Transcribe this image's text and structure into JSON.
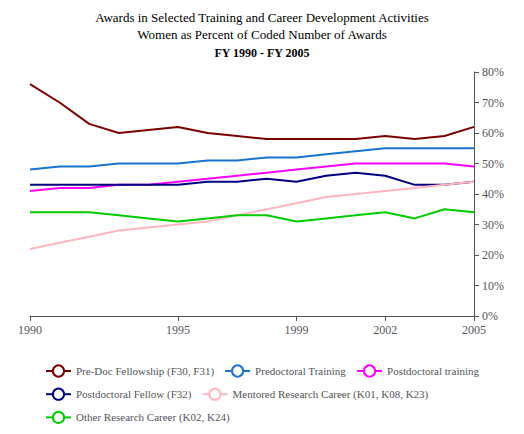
{
  "chart_data": {
    "type": "line",
    "title": "Awards in Selected Training and Career Development Activities\nWomen as Percent of Coded Number of Awards",
    "subtitle": "FY 1990 - FY 2005",
    "x": [
      1990,
      1991,
      1992,
      1993,
      1994,
      1995,
      1996,
      1997,
      1998,
      1999,
      2000,
      2001,
      2002,
      2003,
      2004,
      2005
    ],
    "series": [
      {
        "name": "Pre-Doc Fellowship (F30, F31)",
        "color": "#7B0000",
        "values": [
          76,
          70,
          63,
          60,
          61,
          62,
          60,
          59,
          58,
          58,
          58,
          58,
          59,
          58,
          59,
          62
        ]
      },
      {
        "name": "Predoctoral Training",
        "color": "#1874CD",
        "values": [
          48,
          49,
          49,
          50,
          50,
          50,
          51,
          51,
          52,
          52,
          53,
          54,
          55,
          55,
          55,
          55
        ]
      },
      {
        "name": "Postdoctoral training",
        "color": "#FF00FF",
        "values": [
          41,
          42,
          42,
          43,
          43,
          44,
          45,
          46,
          47,
          48,
          49,
          50,
          50,
          50,
          50,
          49
        ]
      },
      {
        "name": "Postdoctoral Fellow (F32)",
        "color": "#000080",
        "values": [
          43,
          43,
          43,
          43,
          43,
          43,
          44,
          44,
          45,
          44,
          46,
          47,
          46,
          43,
          43,
          44
        ]
      },
      {
        "name": "Mentored Research Career (K01, K08, K23)",
        "color": "#FFB6C1",
        "values": [
          22,
          24,
          26,
          28,
          29,
          30,
          31,
          33,
          35,
          37,
          39,
          40,
          41,
          42,
          43,
          44
        ]
      },
      {
        "name": "Other Research Career (K02, K24)",
        "color": "#00CC00",
        "values": [
          34,
          34,
          34,
          33,
          32,
          31,
          32,
          33,
          33,
          31,
          32,
          33,
          34,
          32,
          35,
          34
        ]
      }
    ],
    "xlim": [
      1990,
      2005
    ],
    "xticks": [
      1990,
      1995,
      1999,
      2002,
      2005
    ],
    "ylim": [
      0,
      80
    ],
    "yticks": [
      {
        "value": 0,
        "label": "0%"
      },
      {
        "value": 10,
        "label": "10%"
      },
      {
        "value": 20,
        "label": "20%"
      },
      {
        "value": 30,
        "label": "30%"
      },
      {
        "value": 40,
        "label": "40%"
      },
      {
        "value": 50,
        "label": "50%"
      },
      {
        "value": 60,
        "label": "60%"
      },
      {
        "value": 70,
        "label": "70%"
      },
      {
        "value": 80,
        "label": "80%"
      }
    ],
    "grid": false,
    "legend": "bottom"
  }
}
